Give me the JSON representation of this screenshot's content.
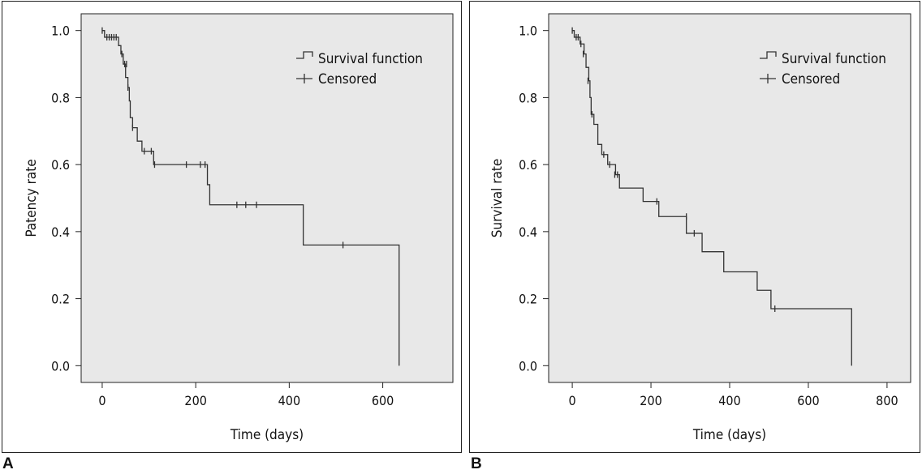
{
  "panels": [
    {
      "letter": "A"
    },
    {
      "letter": "B"
    }
  ],
  "chart_data": [
    {
      "type": "line",
      "subtype": "kaplan-meier step",
      "xlabel": "Time (days)",
      "ylabel": "Patency rate",
      "xlim": [
        -45,
        750
      ],
      "ylim": [
        -0.05,
        1.05
      ],
      "xticks": [
        0,
        200,
        400,
        600
      ],
      "yticks": [
        0.0,
        0.2,
        0.4,
        0.6,
        0.8,
        1.0
      ],
      "xtick_labels": [
        "0",
        "200",
        "400",
        "600"
      ],
      "ytick_labels": [
        "0.0",
        "0.2",
        "0.4",
        "0.6",
        "0.8",
        "1.0"
      ],
      "legend": {
        "position": "top-right",
        "entries": [
          "Survival function",
          "Censored"
        ]
      },
      "grid": false,
      "background": "#e8e8e8",
      "line_color": "#333333",
      "series": [
        {
          "name": "Survival function",
          "steps": [
            [
              0,
              1.0
            ],
            [
              5,
              0.98
            ],
            [
              35,
              0.955
            ],
            [
              40,
              0.93
            ],
            [
              45,
              0.9
            ],
            [
              50,
              0.86
            ],
            [
              55,
              0.83
            ],
            [
              58,
              0.79
            ],
            [
              60,
              0.74
            ],
            [
              65,
              0.71
            ],
            [
              75,
              0.67
            ],
            [
              85,
              0.64
            ],
            [
              110,
              0.6
            ],
            [
              225,
              0.54
            ],
            [
              230,
              0.48
            ],
            [
              430,
              0.36
            ],
            [
              635,
              0.0
            ]
          ],
          "end_x": 635
        },
        {
          "name": "Censored",
          "points": [
            [
              0,
              1.0
            ],
            [
              10,
              0.98
            ],
            [
              15,
              0.98
            ],
            [
              20,
              0.98
            ],
            [
              25,
              0.98
            ],
            [
              30,
              0.98
            ],
            [
              42,
              0.93
            ],
            [
              48,
              0.9
            ],
            [
              52,
              0.9
            ],
            [
              55,
              0.83
            ],
            [
              65,
              0.71
            ],
            [
              90,
              0.64
            ],
            [
              105,
              0.64
            ],
            [
              112,
              0.6
            ],
            [
              180,
              0.6
            ],
            [
              210,
              0.6
            ],
            [
              220,
              0.6
            ],
            [
              288,
              0.48
            ],
            [
              307,
              0.48
            ],
            [
              330,
              0.48
            ],
            [
              515,
              0.36
            ]
          ]
        }
      ]
    },
    {
      "type": "line",
      "subtype": "kaplan-meier step",
      "xlabel": "Time (days)",
      "ylabel": "Survival rate",
      "xlim": [
        -60,
        860
      ],
      "ylim": [
        -0.05,
        1.05
      ],
      "xticks": [
        0,
        200,
        400,
        600,
        800
      ],
      "yticks": [
        0.0,
        0.2,
        0.4,
        0.6,
        0.8,
        1.0
      ],
      "xtick_labels": [
        "0",
        "200",
        "400",
        "600",
        "800"
      ],
      "ytick_labels": [
        "0.0",
        "0.2",
        "0.4",
        "0.6",
        "0.8",
        "1.0"
      ],
      "legend": {
        "position": "top-right",
        "entries": [
          "Survival function",
          "Censored"
        ]
      },
      "grid": false,
      "background": "#e8e8e8",
      "line_color": "#333333",
      "series": [
        {
          "name": "Survival function",
          "steps": [
            [
              0,
              1.0
            ],
            [
              5,
              0.98
            ],
            [
              20,
              0.96
            ],
            [
              30,
              0.93
            ],
            [
              35,
              0.89
            ],
            [
              42,
              0.85
            ],
            [
              45,
              0.8
            ],
            [
              48,
              0.75
            ],
            [
              55,
              0.72
            ],
            [
              65,
              0.66
            ],
            [
              75,
              0.63
            ],
            [
              90,
              0.6
            ],
            [
              110,
              0.57
            ],
            [
              120,
              0.53
            ],
            [
              180,
              0.49
            ],
            [
              220,
              0.445
            ],
            [
              290,
              0.395
            ],
            [
              330,
              0.34
            ],
            [
              385,
              0.28
            ],
            [
              470,
              0.225
            ],
            [
              505,
              0.17
            ],
            [
              710,
              0.0
            ]
          ],
          "end_x": 710
        },
        {
          "name": "Censored",
          "points": [
            [
              0,
              1.0
            ],
            [
              10,
              0.98
            ],
            [
              15,
              0.98
            ],
            [
              22,
              0.96
            ],
            [
              28,
              0.93
            ],
            [
              40,
              0.85
            ],
            [
              50,
              0.75
            ],
            [
              80,
              0.63
            ],
            [
              95,
              0.6
            ],
            [
              108,
              0.57
            ],
            [
              115,
              0.57
            ],
            [
              215,
              0.49
            ],
            [
              290,
              0.445
            ],
            [
              310,
              0.395
            ],
            [
              515,
              0.17
            ]
          ]
        }
      ]
    }
  ]
}
